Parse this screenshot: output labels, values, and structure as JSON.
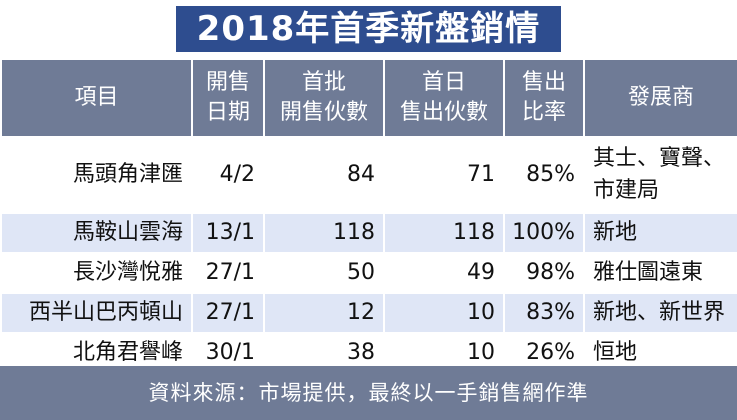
{
  "title": "2018年首季新盤銷情",
  "headers": {
    "project": "項目",
    "date": [
      "開售",
      "日期"
    ],
    "units_launched": [
      "首批",
      "開售伙數"
    ],
    "units_sold": [
      "首日",
      "售出伙數"
    ],
    "ratio": [
      "售出",
      "比率"
    ],
    "developer": "發展商"
  },
  "rows": [
    {
      "project": "馬頭角津匯",
      "date": "4/2",
      "launched": "84",
      "sold": "71",
      "ratio": "85%",
      "developer": [
        "其士、寶聲、",
        "市建局"
      ]
    },
    {
      "project": "馬鞍山雲海",
      "date": "13/1",
      "launched": "118",
      "sold": "118",
      "ratio": "100%",
      "developer": "新地"
    },
    {
      "project": "長沙灣悅雅",
      "date": "27/1",
      "launched": "50",
      "sold": "49",
      "ratio": "98%",
      "developer": "雅仕圖遠東"
    },
    {
      "project": "西半山巴丙頓山",
      "date": "27/1",
      "launched": "12",
      "sold": "10",
      "ratio": "83%",
      "developer": "新地、新世界"
    },
    {
      "project": "北角君譽峰",
      "date": "30/1",
      "launched": "38",
      "sold": "10",
      "ratio": "26%",
      "developer": "恒地"
    }
  ],
  "footer": "資料來源：市場提供，最終以一手銷售網作準",
  "colors": {
    "title_bg": "#2e4d8f",
    "header_bg": "#6f7b96",
    "row_alt": "#dfe6f6"
  }
}
